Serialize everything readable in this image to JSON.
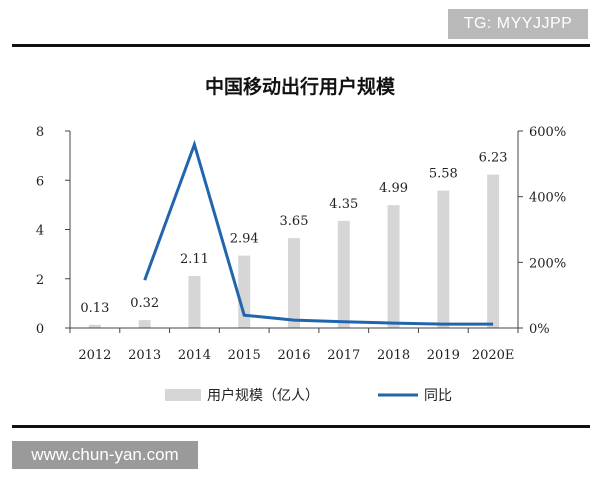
{
  "watermark_top": "TG: MYYJJPP",
  "watermark_bottom": "www.chun-yan.com",
  "colors": {
    "bar": "#d6d6d6",
    "line": "#2166ac",
    "axis": "#444444",
    "text": "#222222"
  },
  "chart_data": {
    "type": "bar",
    "title": "中国移动出行用户规模",
    "categories": [
      "2012",
      "2013",
      "2014",
      "2015",
      "2016",
      "2017",
      "2018",
      "2019",
      "2020E"
    ],
    "series": [
      {
        "name": "用户规模（亿人）",
        "type": "bar",
        "axis": "left",
        "values": [
          0.13,
          0.32,
          2.11,
          2.94,
          3.65,
          4.35,
          4.99,
          5.58,
          6.23
        ],
        "labels": [
          "0.13",
          "0.32",
          "2.11",
          "2.94",
          "3.65",
          "4.35",
          "4.99",
          "5.58",
          "6.23"
        ]
      },
      {
        "name": "同比",
        "type": "line",
        "axis": "right",
        "values": [
          null,
          146,
          559,
          39,
          24,
          19,
          15,
          12,
          12
        ]
      }
    ],
    "ylim_left": [
      0,
      8
    ],
    "yticks_left": [
      "0",
      "2",
      "4",
      "6",
      "8"
    ],
    "ylim_right": [
      0,
      600
    ],
    "yticks_right": [
      "0%",
      "200%",
      "400%",
      "600%"
    ],
    "legend_position": "bottom",
    "grid": false
  }
}
